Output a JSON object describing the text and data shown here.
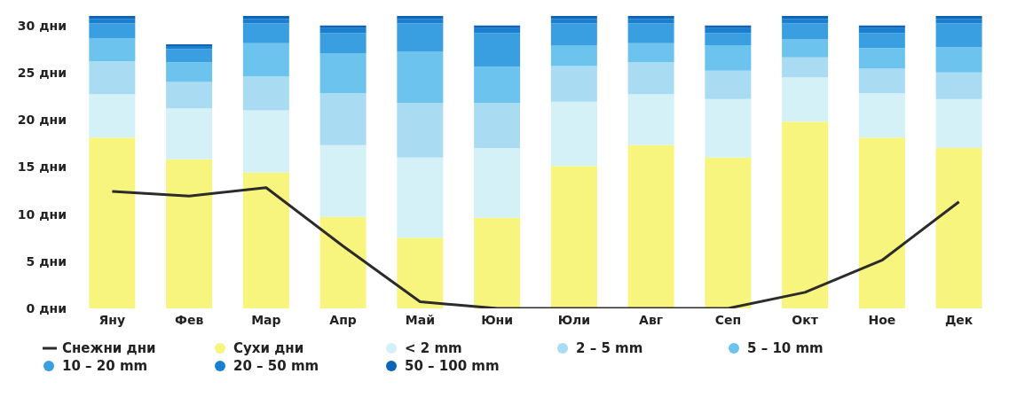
{
  "chart_data": {
    "type": "bar",
    "stacked": true,
    "categories": [
      "Яну",
      "Фев",
      "Мар",
      "Апр",
      "Май",
      "Юни",
      "Юли",
      "Авг",
      "Сеп",
      "Окт",
      "Ное",
      "Дек"
    ],
    "ylim": [
      0,
      31
    ],
    "yticks": [
      {
        "value": 0,
        "label": "0 дни"
      },
      {
        "value": 5,
        "label": "5 дни"
      },
      {
        "value": 10,
        "label": "10 дни"
      },
      {
        "value": 15,
        "label": "15 дни"
      },
      {
        "value": 20,
        "label": "20 дни"
      },
      {
        "value": 25,
        "label": "25 дни"
      },
      {
        "value": 30,
        "label": "30 дни"
      }
    ],
    "grid": false,
    "legend": "bottom",
    "series": [
      {
        "name": "Сухи дни",
        "color": "#f8f57e",
        "values": [
          18.1,
          15.8,
          14.4,
          9.7,
          7.5,
          9.6,
          15.1,
          17.3,
          16.0,
          19.8,
          18.1,
          17.0
        ]
      },
      {
        "name": "< 2 mm",
        "color": "#d4f1f7",
        "values": [
          4.6,
          5.4,
          6.6,
          7.6,
          8.5,
          7.4,
          6.8,
          5.4,
          6.2,
          4.7,
          4.7,
          5.2
        ]
      },
      {
        "name": "2 – 5 mm",
        "color": "#a9dcf2",
        "values": [
          3.5,
          2.8,
          3.6,
          5.5,
          5.8,
          4.8,
          3.8,
          3.4,
          3.0,
          2.1,
          2.6,
          2.8
        ]
      },
      {
        "name": "5 – 10 mm",
        "color": "#6cc3ee",
        "values": [
          2.4,
          2.1,
          3.5,
          4.2,
          5.4,
          3.8,
          2.2,
          2.0,
          2.7,
          1.9,
          2.2,
          2.7
        ]
      },
      {
        "name": "10 – 20 mm",
        "color": "#3a9fe0",
        "values": [
          1.6,
          1.4,
          2.1,
          2.2,
          3.0,
          3.6,
          2.3,
          2.1,
          1.3,
          1.7,
          1.6,
          2.5
        ]
      },
      {
        "name": "20 – 50 mm",
        "color": "#1b7fd0",
        "values": [
          0.5,
          0.3,
          0.5,
          0.5,
          0.5,
          0.5,
          0.5,
          0.5,
          0.5,
          0.5,
          0.5,
          0.5
        ]
      },
      {
        "name": "50 – 100 mm",
        "color": "#0d64b8",
        "values": [
          0.3,
          0.2,
          0.3,
          0.3,
          0.3,
          0.3,
          0.3,
          0.3,
          0.3,
          0.3,
          0.3,
          0.3
        ]
      },
      {
        "name": "Снежни дни",
        "type": "line",
        "color": "#2b2b2b",
        "values": [
          12.4,
          11.9,
          12.8,
          6.6,
          0.7,
          0,
          0,
          0,
          0,
          1.7,
          5.1,
          11.3
        ]
      }
    ]
  }
}
